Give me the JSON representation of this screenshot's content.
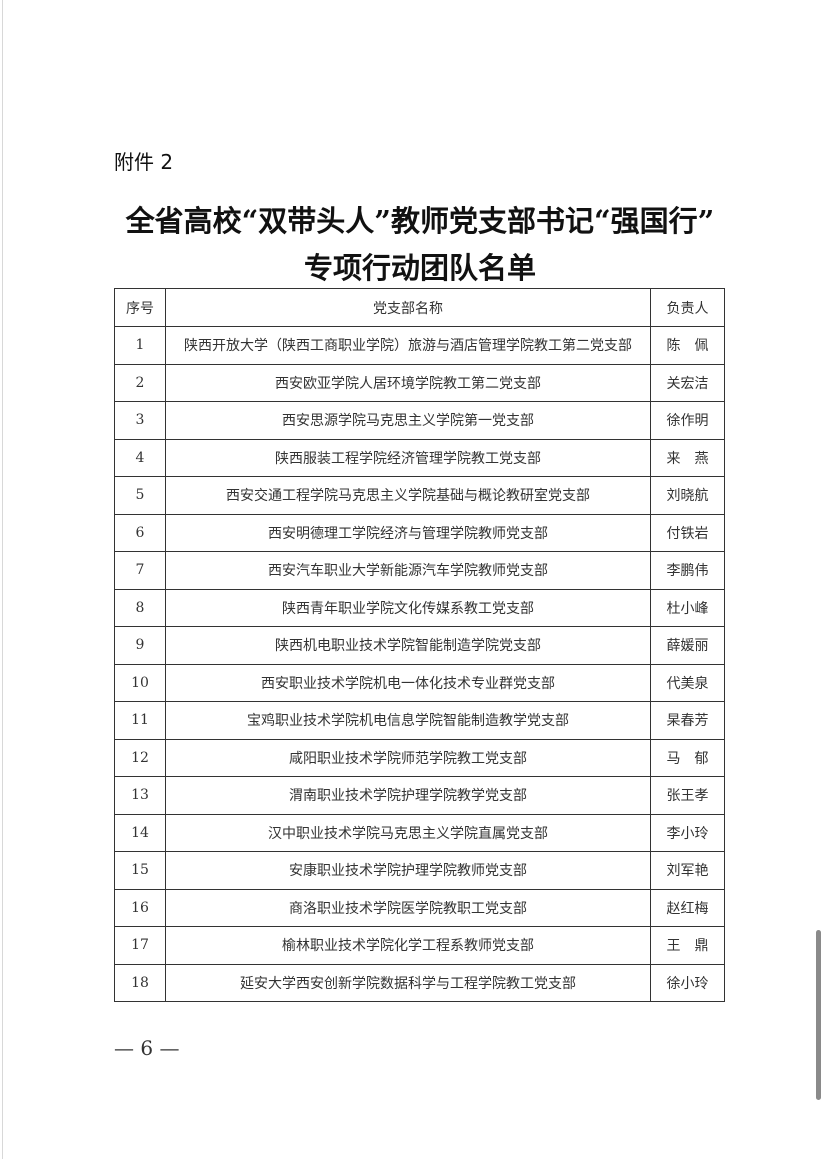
{
  "attachment_label": "附件 2",
  "title_line1": "全省高校“双带头人”教师党支部书记“强国行”",
  "title_line2": "专项行动团队名单",
  "table": {
    "headers": [
      "序号",
      "党支部名称",
      "负责人"
    ],
    "rows": [
      [
        "1",
        "陕西开放大学（陕西工商职业学院）旅游与酒店管理学院教工第二党支部",
        "陈　佩"
      ],
      [
        "2",
        "西安欧亚学院人居环境学院教工第二党支部",
        "关宏洁"
      ],
      [
        "3",
        "西安思源学院马克思主义学院第一党支部",
        "徐作明"
      ],
      [
        "4",
        "陕西服装工程学院经济管理学院教工党支部",
        "来　燕"
      ],
      [
        "5",
        "西安交通工程学院马克思主义学院基础与概论教研室党支部",
        "刘晓航"
      ],
      [
        "6",
        "西安明德理工学院经济与管理学院教师党支部",
        "付铁岩"
      ],
      [
        "7",
        "西安汽车职业大学新能源汽车学院教师党支部",
        "李鹏伟"
      ],
      [
        "8",
        "陕西青年职业学院文化传媒系教工党支部",
        "杜小峰"
      ],
      [
        "9",
        "陕西机电职业技术学院智能制造学院党支部",
        "薛媛丽"
      ],
      [
        "10",
        "西安职业技术学院机电一体化技术专业群党支部",
        "代美泉"
      ],
      [
        "11",
        "宝鸡职业技术学院机电信息学院智能制造教学党支部",
        "杲春芳"
      ],
      [
        "12",
        "咸阳职业技术学院师范学院教工党支部",
        "马　郁"
      ],
      [
        "13",
        "渭南职业技术学院护理学院教学党支部",
        "张王孝"
      ],
      [
        "14",
        "汉中职业技术学院马克思主义学院直属党支部",
        "李小玲"
      ],
      [
        "15",
        "安康职业技术学院护理学院教师党支部",
        "刘军艳"
      ],
      [
        "16",
        "商洛职业技术学院医学院教职工党支部",
        "赵红梅"
      ],
      [
        "17",
        "榆林职业技术学院化学工程系教师党支部",
        "王　鼎"
      ],
      [
        "18",
        "延安大学西安创新学院数据科学与工程学院教工党支部",
        "徐小玲"
      ]
    ]
  },
  "page_number": "— 6 —"
}
